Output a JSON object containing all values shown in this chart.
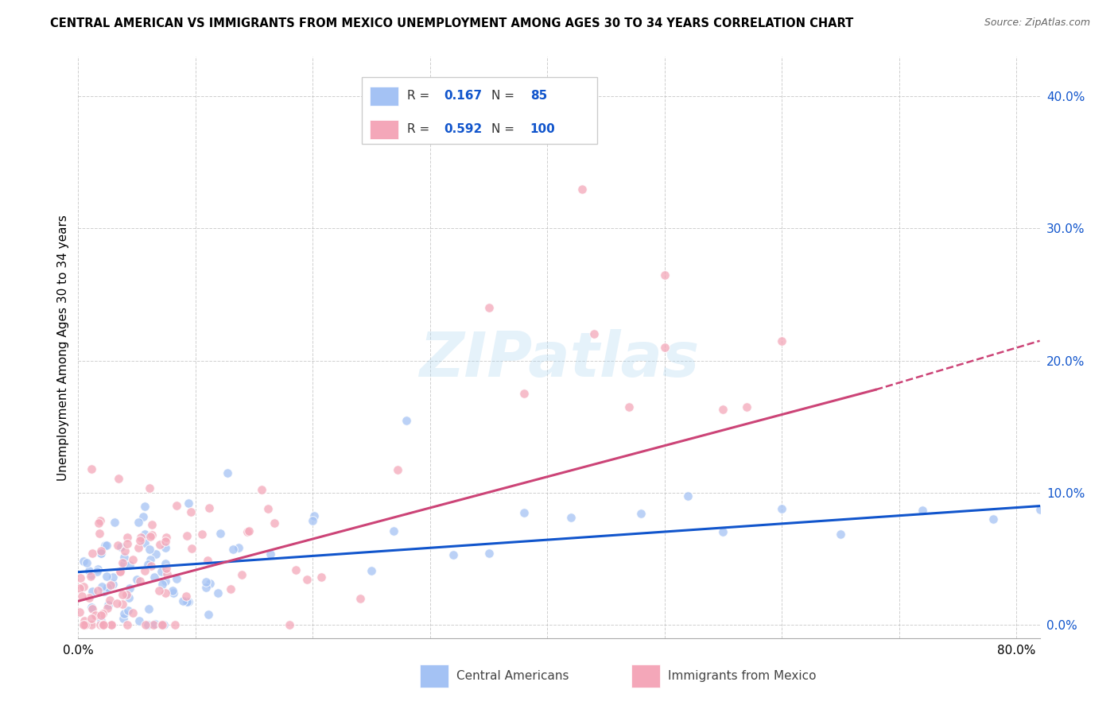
{
  "title": "CENTRAL AMERICAN VS IMMIGRANTS FROM MEXICO UNEMPLOYMENT AMONG AGES 30 TO 34 YEARS CORRELATION CHART",
  "source": "Source: ZipAtlas.com",
  "ylabel": "Unemployment Among Ages 30 to 34 years",
  "ytick_labels": [
    "0.0%",
    "10.0%",
    "20.0%",
    "30.0%",
    "40.0%"
  ],
  "ytick_values": [
    0.0,
    0.1,
    0.2,
    0.3,
    0.4
  ],
  "xtick_values": [
    0.0,
    0.1,
    0.2,
    0.3,
    0.4,
    0.5,
    0.6,
    0.7,
    0.8
  ],
  "xlim": [
    0.0,
    0.82
  ],
  "ylim": [
    -0.01,
    0.43
  ],
  "legend_R_blue": "0.167",
  "legend_N_blue": "85",
  "legend_R_pink": "0.592",
  "legend_N_pink": "100",
  "blue_fill": "#a4c2f4",
  "pink_fill": "#f4a7b9",
  "blue_line_color": "#1155cc",
  "pink_line_color": "#cc4477",
  "trend_blue_x0": 0.0,
  "trend_blue_x1": 0.82,
  "trend_blue_y0": 0.04,
  "trend_blue_y1": 0.09,
  "trend_pink_solid_x0": 0.0,
  "trend_pink_solid_x1": 0.68,
  "trend_pink_solid_y0": 0.018,
  "trend_pink_solid_y1": 0.178,
  "trend_pink_dash_x0": 0.68,
  "trend_pink_dash_x1": 0.82,
  "trend_pink_dash_y0": 0.178,
  "trend_pink_dash_y1": 0.215,
  "watermark": "ZIPatlas",
  "bottom_legend_blue": "Central Americans",
  "bottom_legend_pink": "Immigrants from Mexico",
  "seed": 42
}
